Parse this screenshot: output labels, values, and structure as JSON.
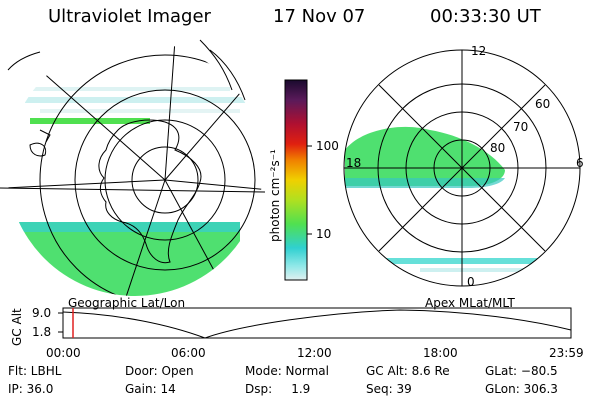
{
  "header": {
    "instrument": "Ultraviolet Imager",
    "date": "17 Nov 07",
    "time": "00:33:30 UT"
  },
  "colorbar": {
    "label": "photon cm⁻²s⁻¹",
    "ticks": [
      "100",
      "10"
    ],
    "colors": [
      "#1a0a2e",
      "#5a1a5a",
      "#b01030",
      "#e02010",
      "#f08000",
      "#f0d000",
      "#b0e020",
      "#50e050",
      "#30d0d0",
      "#90e8e8",
      "#e0f0f0"
    ]
  },
  "left_map": {
    "caption": "Geographic Lat/Lon"
  },
  "right_map": {
    "caption": "Apex MLat/MLT",
    "mlt_labels": [
      "12",
      "18",
      "6",
      "0"
    ],
    "lat_labels": [
      "60",
      "70",
      "80"
    ]
  },
  "altitude_plot": {
    "ylabel": "GC Alt",
    "yticks": [
      "9.0",
      "1.8"
    ],
    "xticks": [
      "00:00",
      "06:00",
      "12:00",
      "18:00",
      "23:59"
    ],
    "marker_color": "#e02020"
  },
  "info": {
    "flt": "Flt: LBHL",
    "ip": "IP: 36.0",
    "door": "Door: Open",
    "gain": "Gain: 14",
    "mode": "Mode: Normal",
    "dsp": "Dsp:     1.9",
    "gcalt": "GC Alt: 8.6 Re",
    "seq": "Seq: 39",
    "glat": "GLat: −80.5",
    "glon": "GLon: 306.3"
  }
}
